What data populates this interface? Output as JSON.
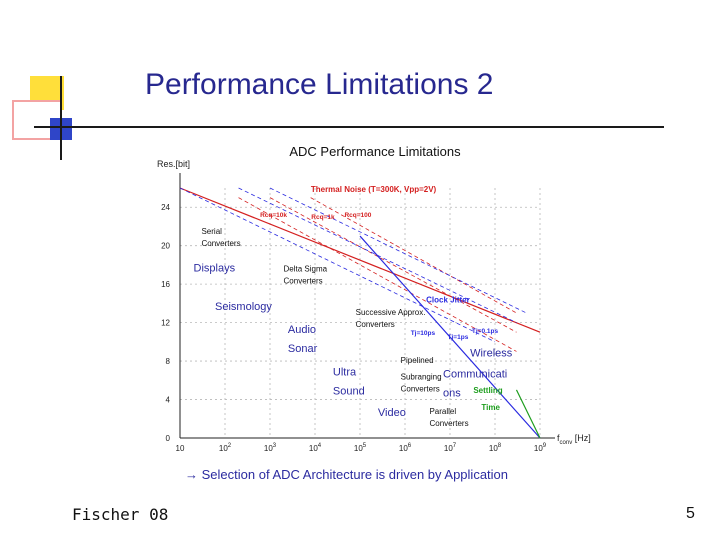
{
  "slide": {
    "title": "Performance Limitations 2",
    "caption_arrow": "→",
    "caption": "Selection of ADC Architecture is driven by Application",
    "footer_left": "Fischer 08",
    "page_number": "5"
  },
  "colors": {
    "title": "#27288f",
    "application_labels": "#2b2ba0",
    "thermal": "#d42020",
    "clock": "#2a2ae0",
    "settling": "#1e9e1e"
  },
  "chart_data": {
    "type": "line",
    "title": "ADC Performance Limitations",
    "ylabel": "Res.[bit]",
    "xlabel": "f_conv [Hz]",
    "xscale": "log",
    "xlim": [
      10,
      1000000000
    ],
    "ylim": [
      0,
      26
    ],
    "grid": true,
    "x_tick_labels": [
      "10",
      "10^2",
      "10^3",
      "10^4",
      "10^5",
      "10^6",
      "10^7",
      "10^8",
      "10^9"
    ],
    "y_ticks": [
      0,
      4,
      8,
      12,
      16,
      20,
      24
    ],
    "series": [
      {
        "name": "Thermal Noise (T=300K, Vpp=2V)",
        "x": [
          10,
          1000000000
        ],
        "y": [
          26,
          11
        ]
      },
      {
        "name": "Rcq=10k",
        "x": [
          200,
          300000000
        ],
        "y": [
          25,
          9
        ]
      },
      {
        "name": "Rcq=1k",
        "x": [
          1000,
          300000000
        ],
        "y": [
          25,
          11
        ]
      },
      {
        "name": "Rcq=100",
        "x": [
          8000,
          300000000
        ],
        "y": [
          25,
          13
        ]
      },
      {
        "name": "Clock Jitter",
        "x": [
          100000,
          1000000000
        ],
        "y": [
          21,
          0
        ]
      },
      {
        "name": "Tj=10ps",
        "x": [
          10,
          100000000
        ],
        "y": [
          26,
          10
        ]
      },
      {
        "name": "Tj=1ps",
        "x": [
          200,
          300000000
        ],
        "y": [
          26,
          12
        ]
      },
      {
        "name": "Tj=0.1ps",
        "x": [
          1000,
          500000000
        ],
        "y": [
          26,
          13
        ]
      },
      {
        "name": "Settling Time",
        "x": [
          300000000,
          1000000000
        ],
        "y": [
          5,
          0
        ]
      }
    ],
    "annotations": [
      {
        "text": "Thermal Noise (T=300K, Vpp=2V)",
        "x": 200000,
        "y": 25.6
      },
      {
        "text": "Rcq=10k",
        "x": 1200,
        "y": 23
      },
      {
        "text": "Rcq=1k",
        "x": 15000,
        "y": 22.8
      },
      {
        "text": "Rcq=100",
        "x": 90000,
        "y": 23
      },
      {
        "text": "Clock Jitter",
        "x": 9000000,
        "y": 14.1
      },
      {
        "text": "Tj=10ps",
        "x": 2500000,
        "y": 10.7
      },
      {
        "text": "Tj=1ps",
        "x": 15000000,
        "y": 10.3
      },
      {
        "text": "Tj=0.1ps",
        "x": 60000000,
        "y": 10.9
      },
      {
        "text": "Settling",
        "x": 70000000,
        "y": 4.7
      },
      {
        "text": "Time",
        "x": 80000000,
        "y": 2.9
      }
    ],
    "architecture_labels": [
      {
        "lines": [
          "Serial",
          "Converters"
        ],
        "x": 30,
        "y": 21.2
      },
      {
        "lines": [
          "Delta Sigma",
          "Converters"
        ],
        "x": 2000,
        "y": 17.3
      },
      {
        "lines": [
          "Successive Approx.",
          "Converters"
        ],
        "x": 80000,
        "y": 12.8
      },
      {
        "lines": [
          "Pipelined"
        ],
        "x": 800000,
        "y": 7.8
      },
      {
        "lines": [
          "Subranging",
          "Converters"
        ],
        "x": 800000,
        "y": 6.1
      },
      {
        "lines": [
          "Parallel",
          "Converters"
        ],
        "x": 3500000,
        "y": 2.5
      }
    ],
    "application_labels": [
      {
        "lines": [
          "Displays"
        ],
        "x": 20,
        "y": 17.3
      },
      {
        "lines": [
          "Seismology"
        ],
        "x": 60,
        "y": 13.3
      },
      {
        "lines": [
          "Audio",
          "Sonar"
        ],
        "x": 2500,
        "y": 10.9
      },
      {
        "lines": [
          "Wireless"
        ],
        "x": 28000000,
        "y": 8.5
      },
      {
        "lines": [
          "Ultra",
          "Sound"
        ],
        "x": 25000,
        "y": 6.5
      },
      {
        "lines": [
          "Communicati",
          "ons"
        ],
        "x": 7000000,
        "y": 6.3
      },
      {
        "lines": [
          "Video"
        ],
        "x": 250000,
        "y": 2.3
      }
    ]
  }
}
